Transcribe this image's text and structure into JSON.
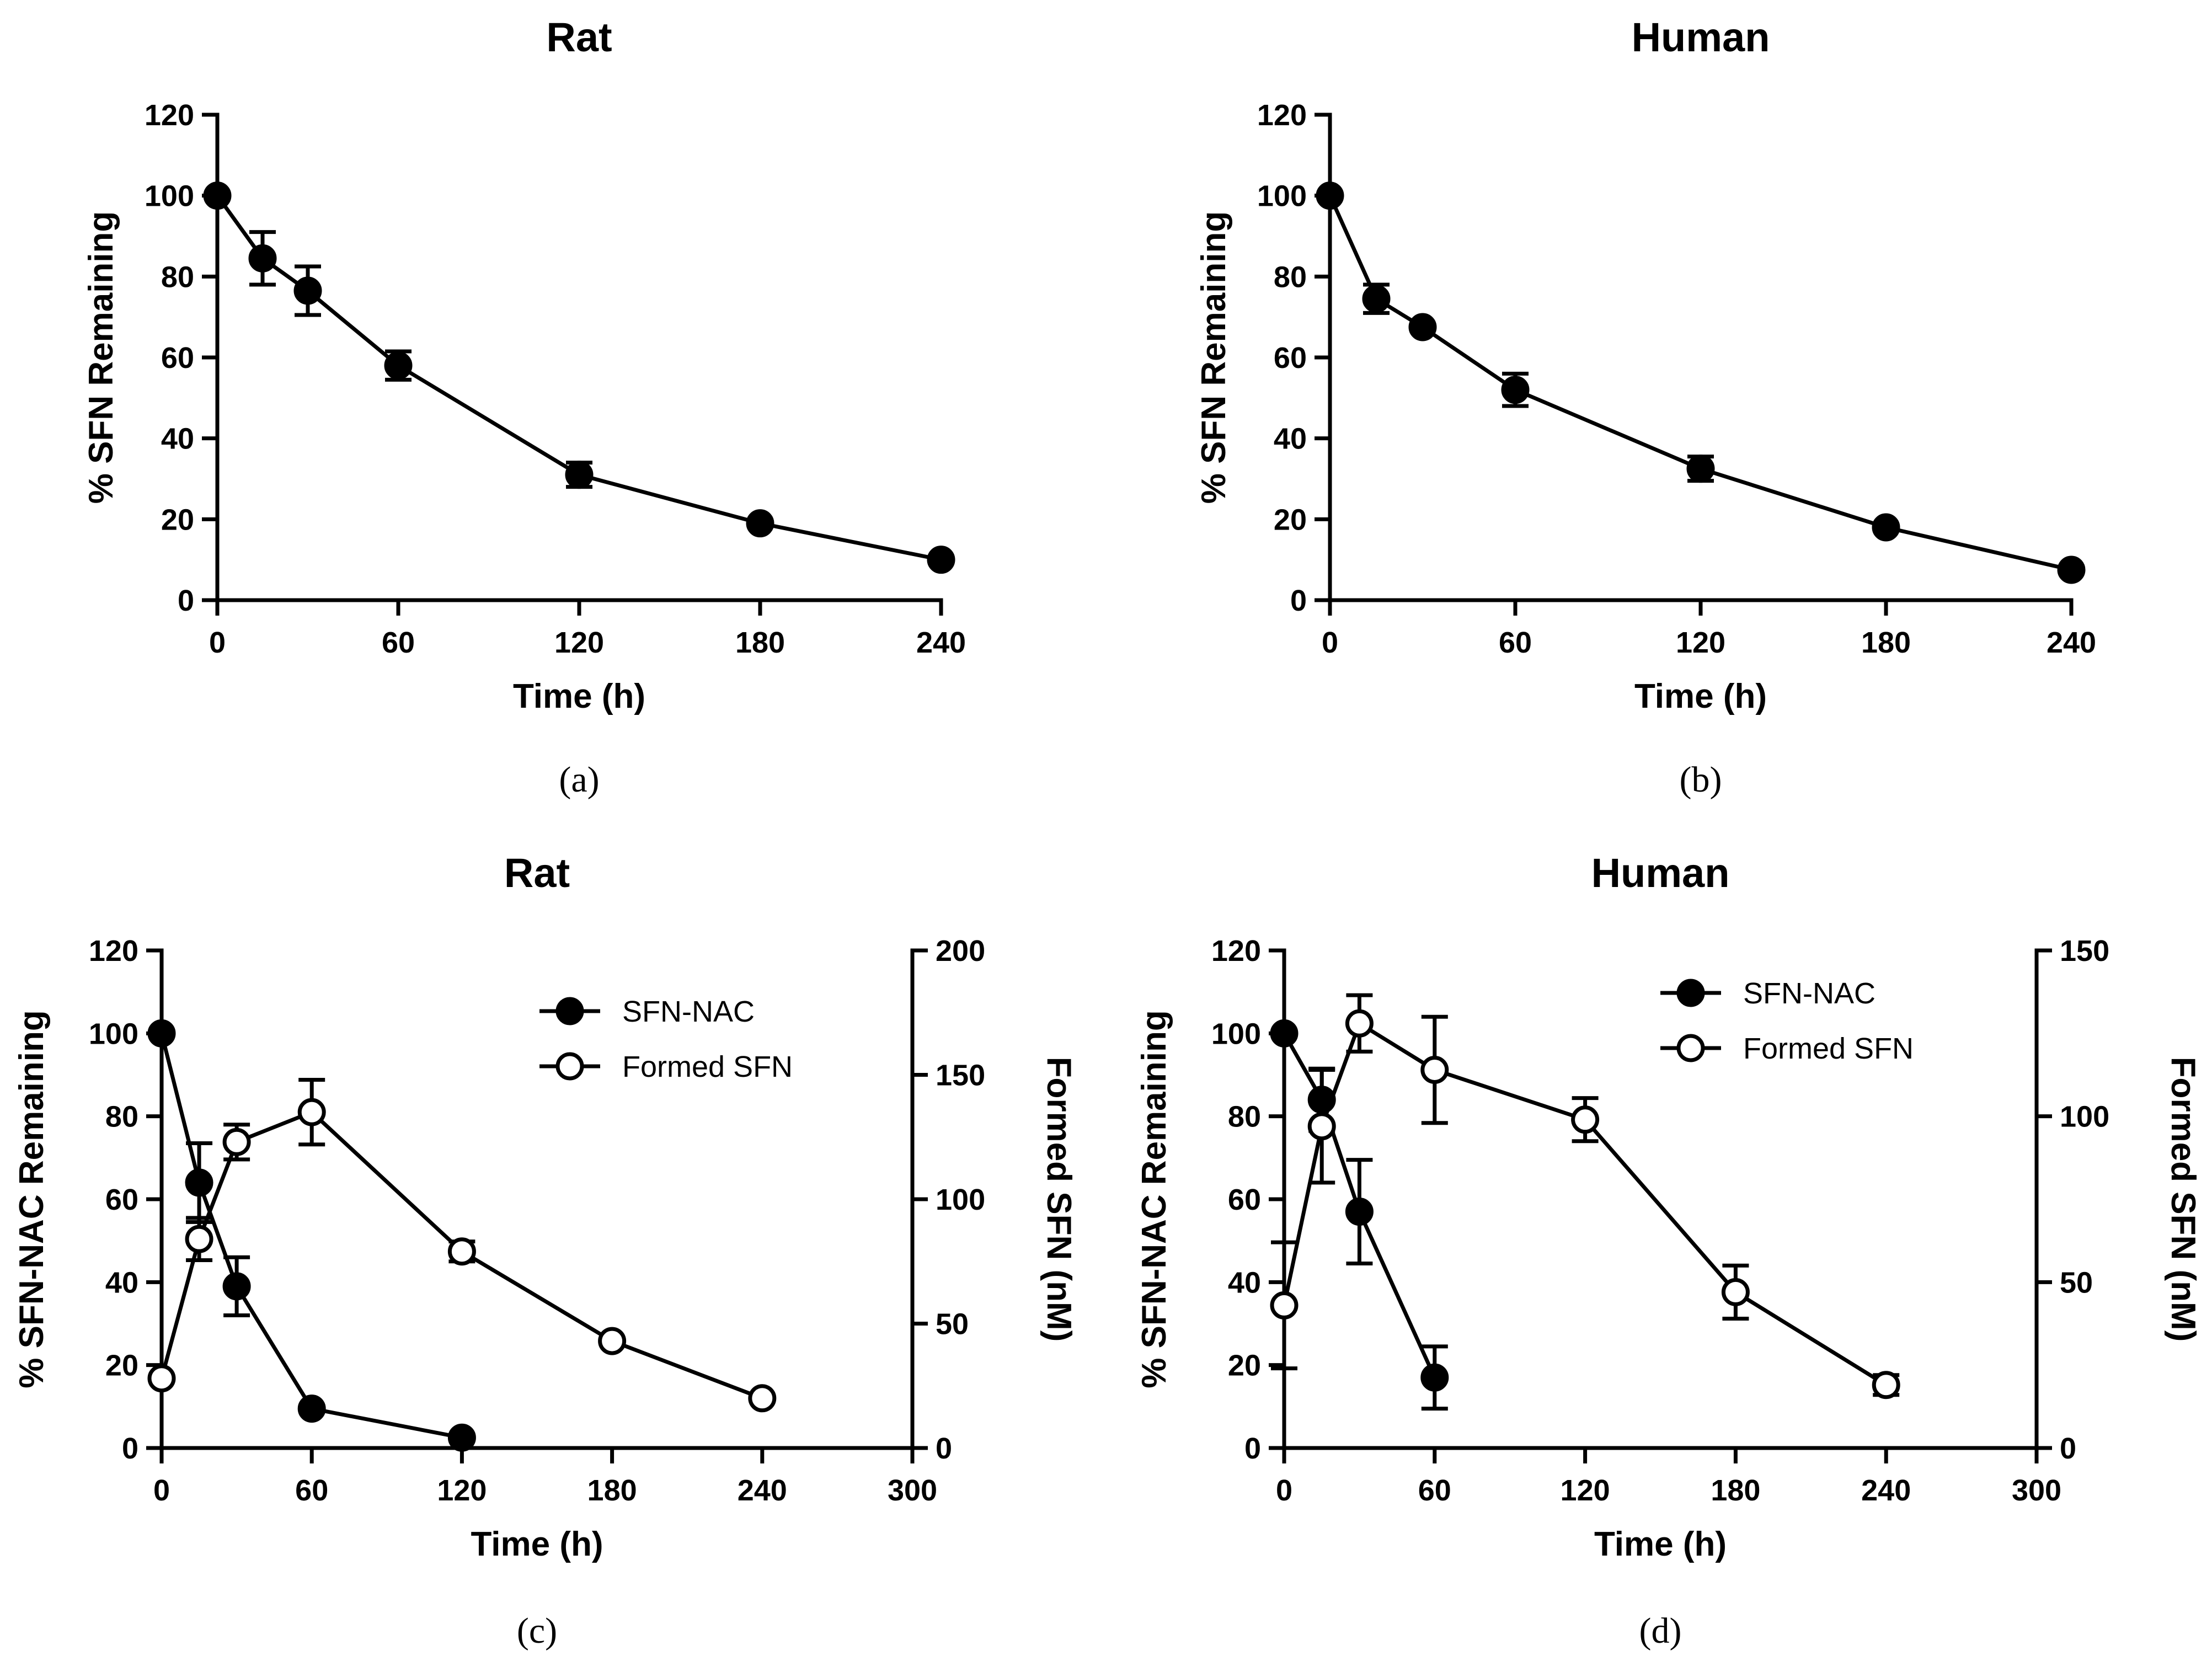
{
  "chart_data": [
    {
      "type": "line",
      "panel_label": "(a)",
      "title": "Rat",
      "xlabel": "Time (h)",
      "ylabel": "% SFN Remaining",
      "xlim": [
        0,
        240
      ],
      "ylim": [
        0,
        120
      ],
      "xticks": [
        0,
        60,
        120,
        180,
        240
      ],
      "yticks": [
        0,
        20,
        40,
        60,
        80,
        100,
        120
      ],
      "series": [
        {
          "name": "SFN",
          "marker": "filled",
          "axis": "left",
          "x": [
            0,
            15,
            30,
            60,
            120,
            180,
            240
          ],
          "values": [
            100,
            84.5,
            76.5,
            58,
            31,
            19,
            10
          ],
          "errors": [
            0,
            6.5,
            6,
            3.5,
            3,
            0,
            0
          ]
        }
      ]
    },
    {
      "type": "line",
      "panel_label": "(b)",
      "title": "Human",
      "xlabel": "Time (h)",
      "ylabel": "% SFN Remaining",
      "xlim": [
        0,
        240
      ],
      "ylim": [
        0,
        120
      ],
      "xticks": [
        0,
        60,
        120,
        180,
        240
      ],
      "yticks": [
        0,
        20,
        40,
        60,
        80,
        100,
        120
      ],
      "series": [
        {
          "name": "SFN",
          "marker": "filled",
          "axis": "left",
          "x": [
            0,
            15,
            30,
            60,
            120,
            180,
            240
          ],
          "values": [
            100,
            74.5,
            67.5,
            52,
            32.5,
            18,
            7.5
          ],
          "errors": [
            0,
            3.5,
            0,
            4,
            3,
            0,
            0
          ]
        }
      ]
    },
    {
      "type": "line",
      "panel_label": "(c)",
      "title": "Rat",
      "xlabel": "Time (h)",
      "ylabel": "% SFN-NAC Remaining",
      "y2label": "Formed  SFN (nM)",
      "xlim": [
        0,
        300
      ],
      "ylim": [
        0,
        120
      ],
      "y2lim": [
        0,
        200
      ],
      "xticks": [
        0,
        60,
        120,
        180,
        240,
        300
      ],
      "yticks": [
        0,
        20,
        40,
        60,
        80,
        100,
        120
      ],
      "y2ticks": [
        0,
        50,
        100,
        150,
        200
      ],
      "legend_position": "top-right",
      "series": [
        {
          "name": "SFN-NAC",
          "marker": "filled",
          "axis": "left",
          "x": [
            0,
            15,
            30,
            60,
            120
          ],
          "values": [
            100,
            64,
            39,
            9.5,
            2.5
          ],
          "errors": [
            0,
            9.5,
            7,
            0,
            0
          ]
        },
        {
          "name": "Formed SFN",
          "marker": "open",
          "axis": "right",
          "x": [
            0,
            15,
            30,
            60,
            120,
            180,
            240
          ],
          "values": [
            28,
            84,
            123,
            135,
            79,
            43,
            20
          ],
          "errors": [
            0,
            8.5,
            7,
            13,
            4,
            0,
            0
          ]
        }
      ]
    },
    {
      "type": "line",
      "panel_label": "(d)",
      "title": "Human",
      "xlabel": "Time (h)",
      "ylabel": "% SFN-NAC Remaining",
      "y2label": "Formed  SFN (nM)",
      "xlim": [
        0,
        300
      ],
      "ylim": [
        0,
        120
      ],
      "y2lim": [
        0,
        150
      ],
      "xticks": [
        0,
        60,
        120,
        180,
        240,
        300
      ],
      "yticks": [
        0,
        20,
        40,
        60,
        80,
        100,
        120
      ],
      "y2ticks": [
        0,
        50,
        100,
        150
      ],
      "legend_position": "top-right",
      "series": [
        {
          "name": "SFN-NAC",
          "marker": "filled",
          "axis": "left",
          "x": [
            0,
            15,
            30,
            60
          ],
          "values": [
            100,
            84,
            57,
            17
          ],
          "errors": [
            0,
            7.5,
            12.5,
            7.5
          ]
        },
        {
          "name": "Formed SFN",
          "marker": "open",
          "axis": "right",
          "x": [
            0,
            15,
            30,
            60,
            120,
            180,
            240
          ],
          "values": [
            43,
            97,
            128,
            114,
            99,
            47,
            19
          ],
          "errors": [
            19,
            17,
            8.5,
            16,
            6.5,
            8,
            3
          ]
        }
      ]
    }
  ]
}
